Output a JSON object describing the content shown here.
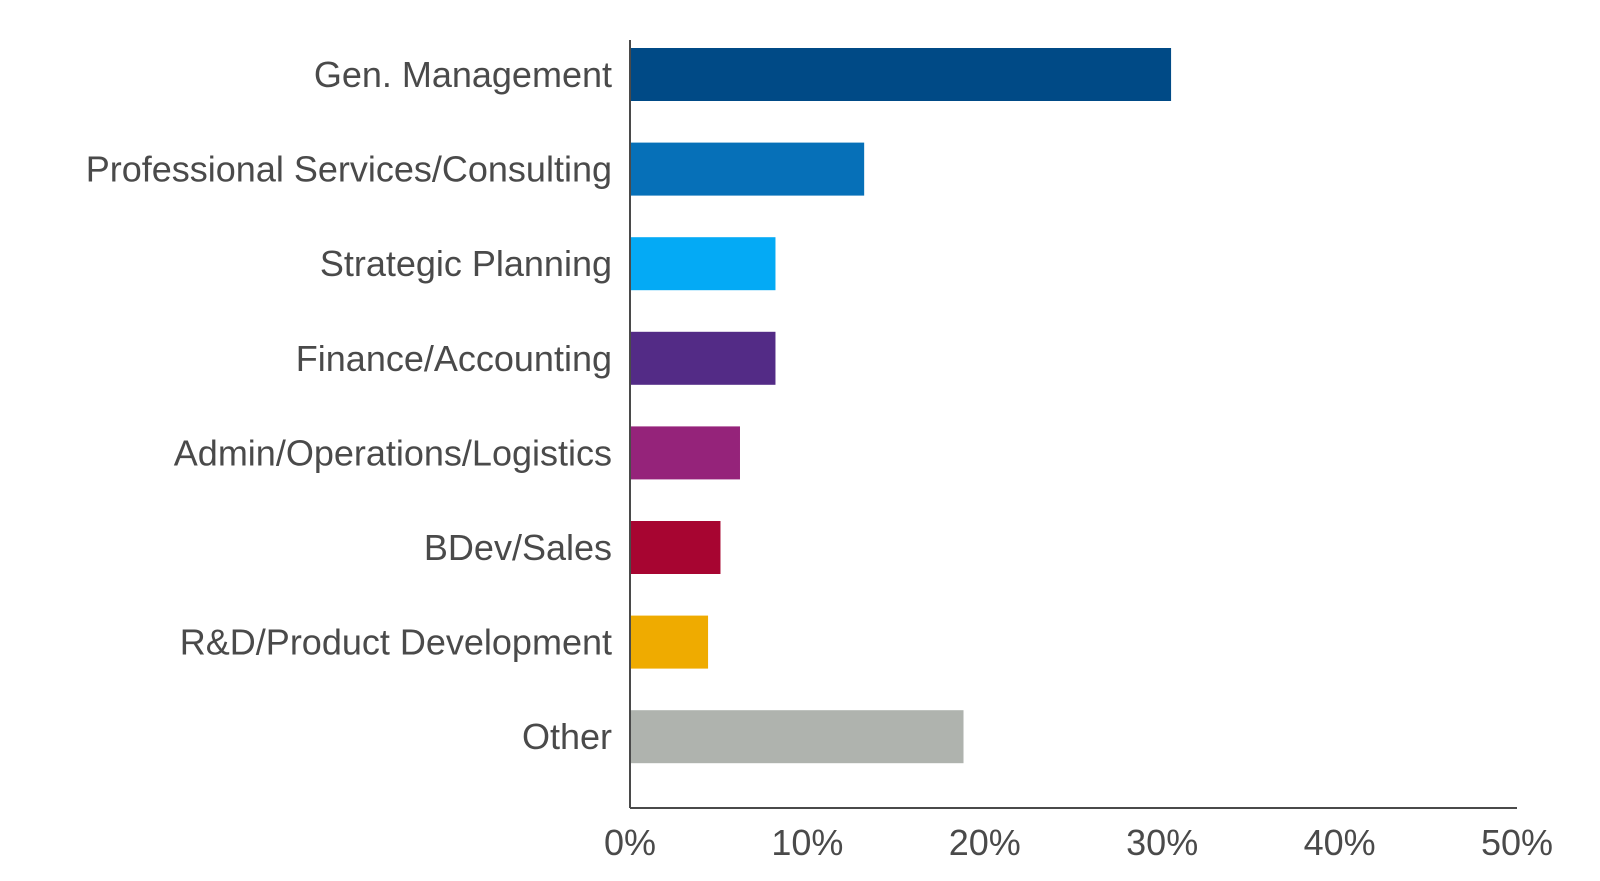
{
  "chart_data": {
    "type": "bar",
    "orientation": "horizontal",
    "title": "",
    "xlabel": "",
    "ylabel": "",
    "xlim": [
      0,
      50
    ],
    "grid": false,
    "legend": "none",
    "tick_values": [
      0,
      10,
      20,
      30,
      40,
      50
    ],
    "tick_labels": [
      "0%",
      "10%",
      "20%",
      "30%",
      "40%",
      "50%"
    ],
    "categories": [
      "Gen. Management",
      "Professional Services/Consulting",
      "Strategic Planning",
      "Finance/Accounting",
      "Admin/Operations/Logistics",
      "BDev/Sales",
      "R&D/Product Development",
      "Other"
    ],
    "values": [
      30.5,
      13.2,
      8.2,
      8.2,
      6.2,
      5.1,
      4.4,
      18.8
    ],
    "colors": [
      "#004a86",
      "#0670b8",
      "#04aaf5",
      "#532b86",
      "#95237a",
      "#a70531",
      "#efab00",
      "#afb3ae"
    ],
    "axis_color": "#4a4a4a",
    "text_color": "#4a4a4a"
  }
}
